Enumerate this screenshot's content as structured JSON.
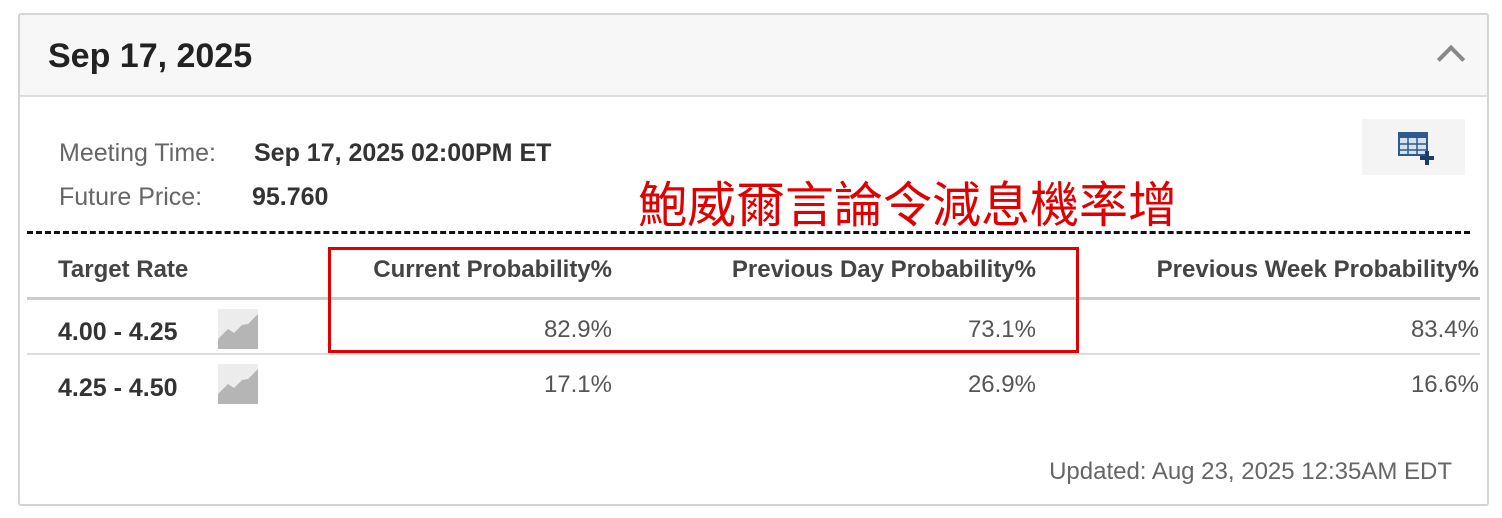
{
  "header": {
    "title": "Sep 17, 2025",
    "collapse_icon": "chevron-up-icon"
  },
  "meeting": {
    "time_label": "Meeting Time:",
    "time_value": "Sep 17, 2025 02:00PM ET",
    "price_label": "Future Price:",
    "price_value": "95.760"
  },
  "export_icon": "table-add-icon",
  "annotation": {
    "text": "鮑威爾言論令減息機率增",
    "color": "#e00000"
  },
  "table": {
    "headers": [
      "Target Rate",
      "Current Probability%",
      "Previous Day Probability%",
      "Previous Week Probability%"
    ],
    "rows": [
      {
        "rate": "4.00 - 4.25",
        "current": "82.9%",
        "prev_day": "73.1%",
        "prev_week": "83.4%"
      },
      {
        "rate": "4.25 - 4.50",
        "current": "17.1%",
        "prev_day": "26.9%",
        "prev_week": "16.6%"
      }
    ]
  },
  "updated": "Updated: Aug 23, 2025 12:35AM EDT"
}
